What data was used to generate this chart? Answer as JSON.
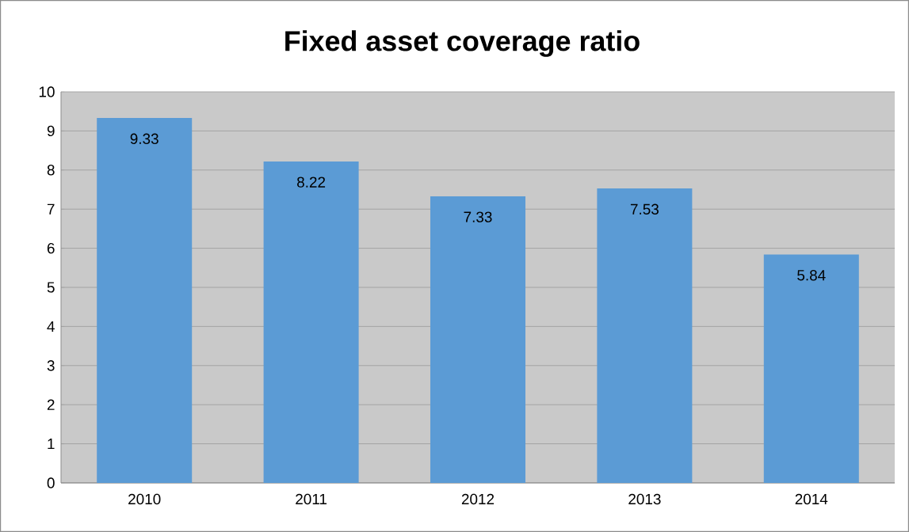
{
  "chart_data": {
    "type": "bar",
    "title": "Fixed asset coverage ratio",
    "categories": [
      "2010",
      "2011",
      "2012",
      "2013",
      "2014"
    ],
    "values": [
      9.33,
      8.22,
      7.33,
      7.53,
      5.84
    ],
    "color": "#5b9bd5",
    "ylim": [
      0,
      10
    ],
    "yticks": [
      0,
      1,
      2,
      3,
      4,
      5,
      6,
      7,
      8,
      9,
      10
    ],
    "grid": "y",
    "data_labels": true
  }
}
